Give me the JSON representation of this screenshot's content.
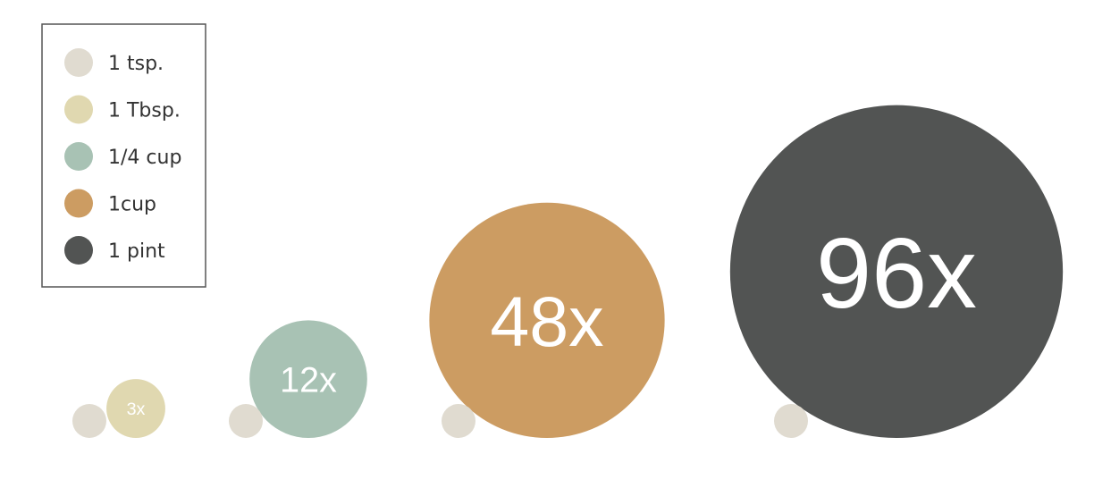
{
  "chart_data": {
    "type": "bubble",
    "title": "",
    "unit_series": "1 tsp.",
    "legend": {
      "placement": "top-left",
      "items": [
        {
          "label": "1 tsp.",
          "color": "#e0dbd0"
        },
        {
          "label": "1 Tbsp.",
          "color": "#e0d8b0"
        },
        {
          "label": "1/4 cup",
          "color": "#a8c2b4"
        },
        {
          "label": "1cup",
          "color": "#cc9c62"
        },
        {
          "label": "1 pint",
          "color": "#525453"
        }
      ]
    },
    "comparisons": [
      {
        "measure": "1 Tbsp.",
        "multiple": 3,
        "label": "3x",
        "color": "#e0d8b0"
      },
      {
        "measure": "1/4 cup",
        "multiple": 12,
        "label": "12x",
        "color": "#a8c2b4"
      },
      {
        "measure": "1cup",
        "multiple": 48,
        "label": "48x",
        "color": "#cc9c62"
      },
      {
        "measure": "1 pint",
        "multiple": 96,
        "label": "96x",
        "color": "#525453"
      }
    ],
    "reference": {
      "measure": "1 tsp.",
      "multiple": 1,
      "color": "#e0dbd0"
    }
  }
}
